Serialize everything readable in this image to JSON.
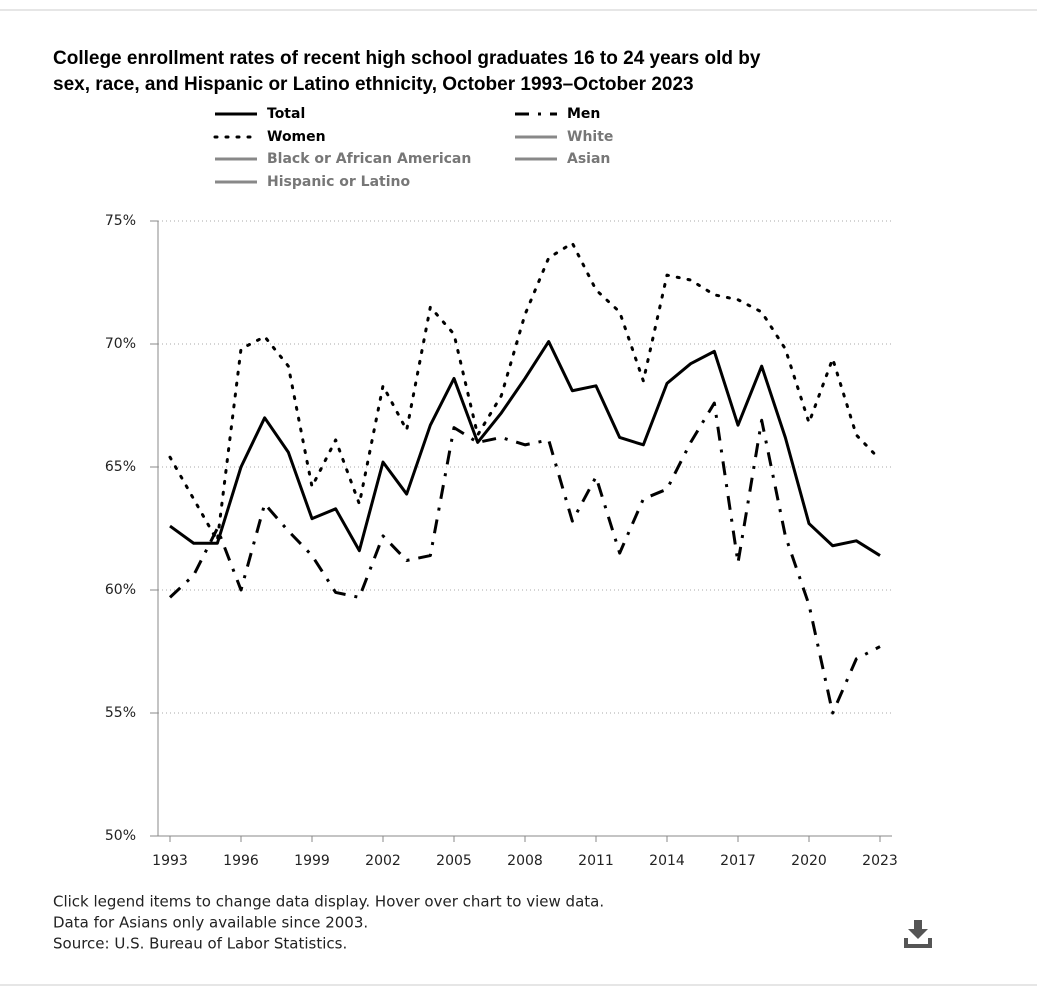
{
  "chart_data": {
    "type": "line",
    "title": [
      "College enrollment rates of recent high school graduates 16 to 24 years old by",
      "sex, race, and Hispanic or Latino ethnicity, October 1993–October 2023"
    ],
    "x": [
      1993,
      1994,
      1995,
      1996,
      1997,
      1998,
      1999,
      2000,
      2001,
      2002,
      2003,
      2004,
      2005,
      2006,
      2007,
      2008,
      2009,
      2010,
      2011,
      2012,
      2013,
      2014,
      2015,
      2016,
      2017,
      2018,
      2019,
      2020,
      2021,
      2022,
      2023
    ],
    "series": [
      {
        "name": "Total",
        "color": "#000000",
        "dash": "solid",
        "visible": true,
        "values": [
          62.6,
          61.9,
          61.9,
          65.0,
          67.0,
          65.6,
          62.9,
          63.3,
          61.6,
          65.2,
          63.9,
          66.7,
          68.6,
          66.0,
          67.2,
          68.6,
          70.1,
          68.1,
          68.3,
          66.2,
          65.9,
          68.4,
          69.2,
          69.7,
          66.7,
          69.1,
          66.2,
          62.7,
          61.8,
          62.0,
          61.4
        ]
      },
      {
        "name": "Men",
        "color": "#000000",
        "dash": "dashdot",
        "visible": true,
        "values": [
          59.7,
          60.6,
          62.5,
          60.0,
          63.5,
          62.4,
          61.4,
          59.9,
          59.7,
          62.2,
          61.2,
          61.4,
          66.6,
          66.0,
          66.2,
          65.9,
          66.1,
          62.8,
          64.6,
          61.5,
          63.7,
          64.1,
          66.0,
          67.6,
          61.1,
          66.9,
          62.2,
          59.4,
          55.0,
          57.2,
          57.7
        ]
      },
      {
        "name": "Women",
        "color": "#000000",
        "dash": "dotted",
        "visible": true,
        "values": [
          65.4,
          63.7,
          62.0,
          69.8,
          70.3,
          69.1,
          64.2,
          66.1,
          63.5,
          68.3,
          66.5,
          71.5,
          70.4,
          66.3,
          67.9,
          71.2,
          73.5,
          74.1,
          72.2,
          71.3,
          68.5,
          72.8,
          72.6,
          72.0,
          71.8,
          71.3,
          69.8,
          66.8,
          69.4,
          66.3,
          65.3
        ]
      },
      {
        "name": "White",
        "color": "#888888",
        "dash": "solid",
        "visible": false,
        "values": [
          null,
          null,
          null,
          null,
          null,
          null,
          null,
          null,
          null,
          null,
          null,
          null,
          null,
          null,
          null,
          null,
          null,
          null,
          null,
          null,
          null,
          null,
          null,
          null,
          null,
          null,
          null,
          null,
          null,
          null,
          null
        ]
      },
      {
        "name": "Black or African American",
        "color": "#888888",
        "dash": "solid",
        "visible": false,
        "values": [
          null,
          null,
          null,
          null,
          null,
          null,
          null,
          null,
          null,
          null,
          null,
          null,
          null,
          null,
          null,
          null,
          null,
          null,
          null,
          null,
          null,
          null,
          null,
          null,
          null,
          null,
          null,
          null,
          null,
          null,
          null
        ]
      },
      {
        "name": "Asian",
        "color": "#888888",
        "dash": "solid",
        "visible": false,
        "values": [
          null,
          null,
          null,
          null,
          null,
          null,
          null,
          null,
          null,
          null,
          null,
          null,
          null,
          null,
          null,
          null,
          null,
          null,
          null,
          null,
          null,
          null,
          null,
          null,
          null,
          null,
          null,
          null,
          null,
          null,
          null
        ]
      },
      {
        "name": "Hispanic or Latino",
        "color": "#888888",
        "dash": "solid",
        "visible": false,
        "values": [
          null,
          null,
          null,
          null,
          null,
          null,
          null,
          null,
          null,
          null,
          null,
          null,
          null,
          null,
          null,
          null,
          null,
          null,
          null,
          null,
          null,
          null,
          null,
          null,
          null,
          null,
          null,
          null,
          null,
          null,
          null
        ]
      }
    ],
    "xlim": [
      1993,
      2023
    ],
    "xticks": [
      1993,
      1996,
      1999,
      2002,
      2005,
      2008,
      2011,
      2014,
      2017,
      2020,
      2023
    ],
    "ylim": [
      50,
      75
    ],
    "yticks": [
      {
        "value": 50,
        "label": "50%"
      },
      {
        "value": 55,
        "label": "55%"
      },
      {
        "value": 60,
        "label": "60%"
      },
      {
        "value": 65,
        "label": "65%"
      },
      {
        "value": 70,
        "label": "70%"
      },
      {
        "value": 75,
        "label": "75%"
      }
    ],
    "grid": true,
    "notes": [
      "Click legend items to change data display. Hover over chart to view data.",
      "Data for Asians only available since 2003.",
      "Source: U.S. Bureau of Labor Statistics."
    ]
  }
}
